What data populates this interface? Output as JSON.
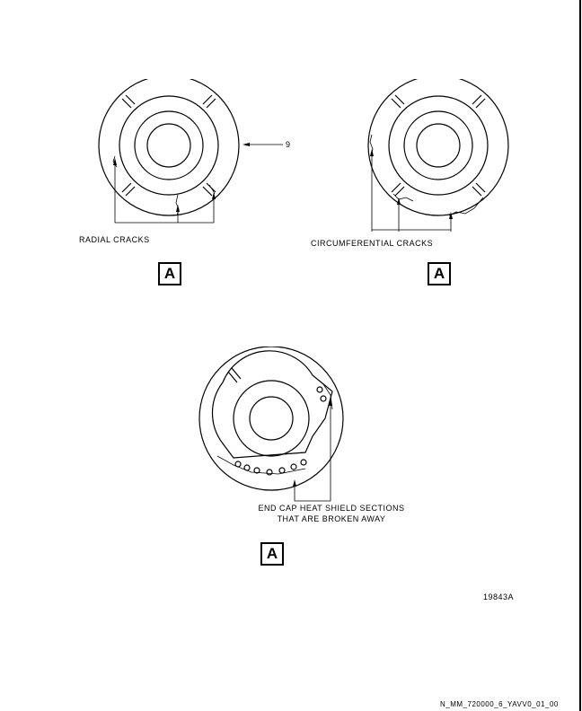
{
  "figures": {
    "radial": {
      "callout": "9",
      "label": "RADIAL CRACKS",
      "view": "A"
    },
    "circumferential": {
      "label": "CIRCUMFERENTIAL CRACKS",
      "view": "A"
    },
    "broken": {
      "label_line1": "END CAP HEAT SHIELD SECTIONS",
      "label_line2": "THAT ARE BROKEN AWAY",
      "view": "A"
    }
  },
  "figure_number": "19843A",
  "document_code": "N_MM_720000_6_YAVV0_01_00"
}
